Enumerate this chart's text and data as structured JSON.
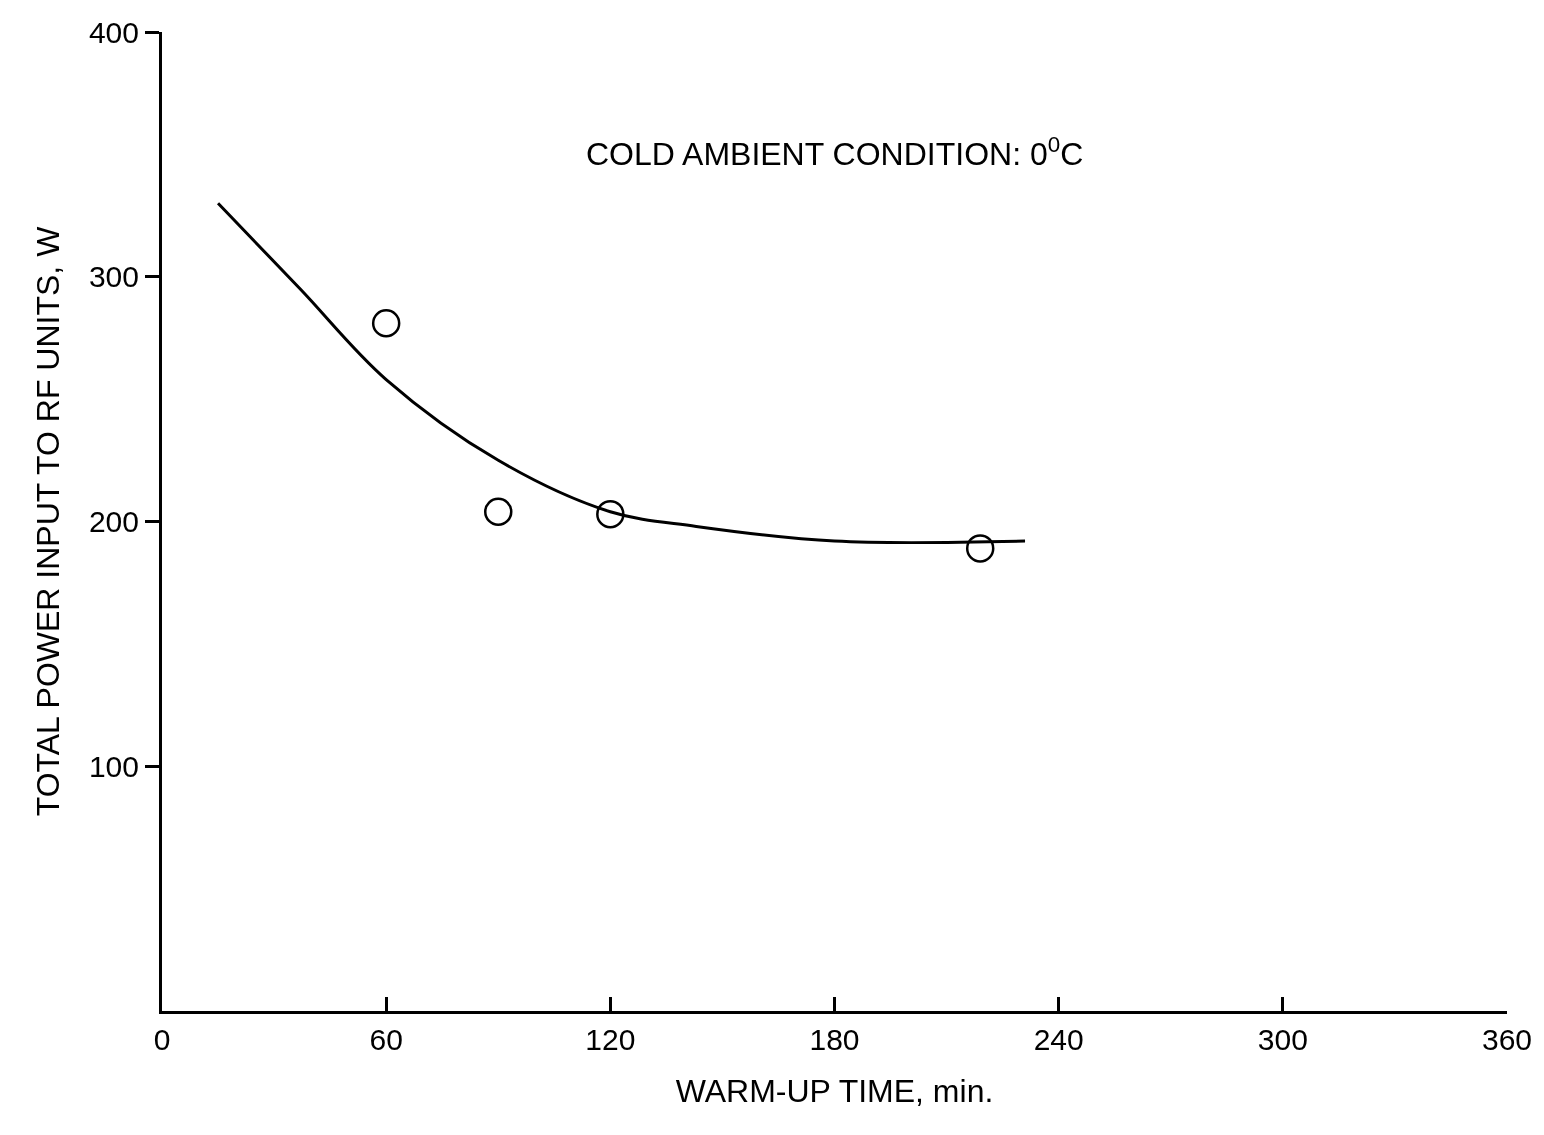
{
  "chart_data": {
    "type": "scatter",
    "xlabel": "WARM-UP TIME, min.",
    "ylabel": "TOTAL POWER INPUT TO RF UNITS, W",
    "annotations": [
      "COLD AMBIENT CONDITION: 0$^{0}$C"
    ],
    "series": [
      {
        "type": "line",
        "color": "#000000",
        "x": [
          15,
          37,
          60,
          90,
          120,
          143,
          180,
          231
        ],
        "values": [
          330,
          295,
          258,
          225,
          204,
          198,
          192,
          192
        ],
        "marker": "none",
        "line_style": "solid"
      },
      {
        "color": "#000000",
        "x": [
          60,
          90,
          120,
          219
        ],
        "values": [
          281,
          204,
          203,
          189
        ],
        "marker": "circle"
      }
    ],
    "xlim": [
      0,
      360
    ],
    "ylim": [
      0,
      400
    ],
    "xticks": [
      0,
      60,
      120,
      180,
      240,
      300,
      360
    ],
    "yticks": [
      100,
      200,
      300,
      400
    ]
  }
}
